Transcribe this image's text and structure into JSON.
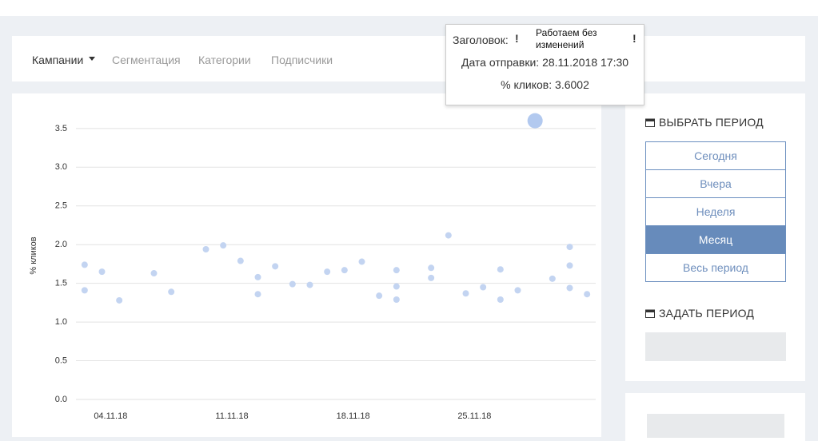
{
  "nav": {
    "items": [
      "Кампании",
      "Сегментация",
      "Категории",
      "Подписчики"
    ]
  },
  "chart_data": {
    "type": "scatter",
    "y_label": "% кликов",
    "x": [
      "2018-11-02",
      "2018-11-02",
      "2018-11-03",
      "2018-11-04",
      "2018-11-06",
      "2018-11-07",
      "2018-11-09",
      "2018-11-10",
      "2018-11-11",
      "2018-11-12",
      "2018-11-12",
      "2018-11-13",
      "2018-11-14",
      "2018-11-15",
      "2018-11-16",
      "2018-11-17",
      "2018-11-18",
      "2018-11-19",
      "2018-11-20",
      "2018-11-20",
      "2018-11-20",
      "2018-11-22",
      "2018-11-22",
      "2018-11-23",
      "2018-11-24",
      "2018-11-25",
      "2018-11-26",
      "2018-11-26",
      "2018-11-27",
      "2018-11-28",
      "2018-11-29",
      "2018-11-30",
      "2018-11-30",
      "2018-11-30",
      "2018-12-01"
    ],
    "values": [
      1.41,
      1.74,
      1.65,
      1.28,
      1.63,
      1.39,
      1.94,
      1.99,
      1.79,
      1.58,
      1.36,
      1.72,
      1.49,
      1.48,
      1.65,
      1.67,
      1.78,
      1.34,
      1.29,
      1.46,
      1.67,
      1.7,
      1.57,
      2.12,
      1.37,
      1.45,
      1.29,
      1.68,
      1.41,
      3.6002,
      1.56,
      1.73,
      1.97,
      1.44,
      1.36
    ],
    "color": "#c3d4f1",
    "active_color": "#b2c9ef",
    "active_point": 29,
    "xlim": [
      "2018-11-02",
      "2018-12-02"
    ],
    "xticks": [
      {
        "value": "2018-11-04",
        "label": "04.11.18"
      },
      {
        "value": "2018-11-11",
        "label": "11.11.18"
      },
      {
        "value": "2018-11-18",
        "label": "18.11.18"
      },
      {
        "value": "2018-11-25",
        "label": "25.11.18"
      }
    ],
    "ylim": [
      0,
      3.7
    ],
    "yticks": [
      {
        "value": 0,
        "label": "0.0"
      },
      0.5,
      {
        "value": 1,
        "label": "1.0"
      },
      1.5,
      {
        "value": 2,
        "label": "2.0"
      },
      2.5,
      {
        "value": 3,
        "label": "3.0"
      },
      3.5
    ],
    "grid": true
  },
  "tooltip": {
    "title_label": "Заголовок:",
    "title_value": "Работаем без изменений",
    "date_label": "Дата отправки:",
    "date_value": "28.11.2018 17:30",
    "clicks_label": "% кликов:"
  },
  "sidebar": {
    "choose_title": "ВЫБРАТЬ ПЕРИОД",
    "buttons": [
      "Сегодня",
      "Вчера",
      "Неделя",
      "Месяц",
      "Весь период"
    ],
    "active_button": 3,
    "set_title": "ЗАДАТЬ ПЕРИОД"
  }
}
